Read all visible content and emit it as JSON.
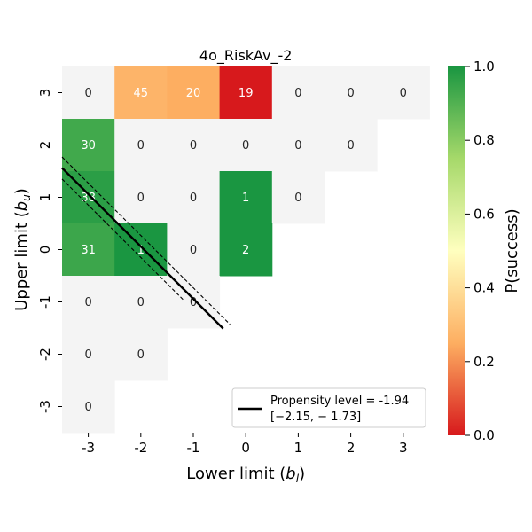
{
  "chart_data": {
    "type": "heatmap",
    "title": "4o_RiskAv_-2",
    "xlabel": "Lower limit (b_l)",
    "ylabel": "Upper limit (b_u)",
    "x_ticks": [
      "-3",
      "-2",
      "-1",
      "0",
      "1",
      "2",
      "3"
    ],
    "y_ticks": [
      "3",
      "2",
      "1",
      "0",
      "-1",
      "-2",
      "-3"
    ],
    "cells": [
      {
        "x": -3,
        "y": 3,
        "count": 0,
        "p_success": null
      },
      {
        "x": -2,
        "y": 3,
        "count": 45,
        "p_success": 0.27
      },
      {
        "x": -1,
        "y": 3,
        "count": 20,
        "p_success": 0.25
      },
      {
        "x": 0,
        "y": 3,
        "count": 19,
        "p_success": 0.0
      },
      {
        "x": 1,
        "y": 3,
        "count": 0,
        "p_success": null
      },
      {
        "x": 2,
        "y": 3,
        "count": 0,
        "p_success": null
      },
      {
        "x": 3,
        "y": 3,
        "count": 0,
        "p_success": null
      },
      {
        "x": -3,
        "y": 2,
        "count": 30,
        "p_success": 0.93
      },
      {
        "x": -2,
        "y": 2,
        "count": 0,
        "p_success": null
      },
      {
        "x": -1,
        "y": 2,
        "count": 0,
        "p_success": null
      },
      {
        "x": 0,
        "y": 2,
        "count": 0,
        "p_success": null
      },
      {
        "x": 1,
        "y": 2,
        "count": 0,
        "p_success": null
      },
      {
        "x": 2,
        "y": 2,
        "count": 0,
        "p_success": null
      },
      {
        "x": -3,
        "y": 1,
        "count": 38,
        "p_success": 0.97
      },
      {
        "x": -2,
        "y": 1,
        "count": 0,
        "p_success": null
      },
      {
        "x": -1,
        "y": 1,
        "count": 0,
        "p_success": null
      },
      {
        "x": 0,
        "y": 1,
        "count": 1,
        "p_success": 1.0
      },
      {
        "x": 1,
        "y": 1,
        "count": 0,
        "p_success": null
      },
      {
        "x": -3,
        "y": 0,
        "count": 31,
        "p_success": 0.94
      },
      {
        "x": -2,
        "y": 0,
        "count": 1,
        "p_success": 1.0
      },
      {
        "x": -1,
        "y": 0,
        "count": 0,
        "p_success": null
      },
      {
        "x": 0,
        "y": 0,
        "count": 2,
        "p_success": 1.0
      },
      {
        "x": -3,
        "y": -1,
        "count": 0,
        "p_success": null
      },
      {
        "x": -2,
        "y": -1,
        "count": 0,
        "p_success": null
      },
      {
        "x": -1,
        "y": -1,
        "count": 0,
        "p_success": null
      },
      {
        "x": -3,
        "y": -2,
        "count": 0,
        "p_success": null
      },
      {
        "x": -2,
        "y": -2,
        "count": 0,
        "p_success": null
      },
      {
        "x": -3,
        "y": -3,
        "count": 0,
        "p_success": null
      }
    ],
    "colorbar": {
      "label": "P(success)",
      "range": [
        0.0,
        1.0
      ],
      "ticks": [
        "0.0",
        "0.2",
        "0.4",
        "0.6",
        "0.8",
        "1.0"
      ],
      "colors": [
        "#d7191c",
        "#fdae61",
        "#ffffbf",
        "#a6d96a",
        "#1a9641"
      ]
    },
    "empty_cell_color": "#f4f4f4",
    "propensity": {
      "level": -1.94,
      "ci": [
        -2.15,
        -1.73
      ],
      "legend_line1": "Propensity level = -1.94",
      "legend_line2": "[−2.15, − 1.73]"
    }
  }
}
